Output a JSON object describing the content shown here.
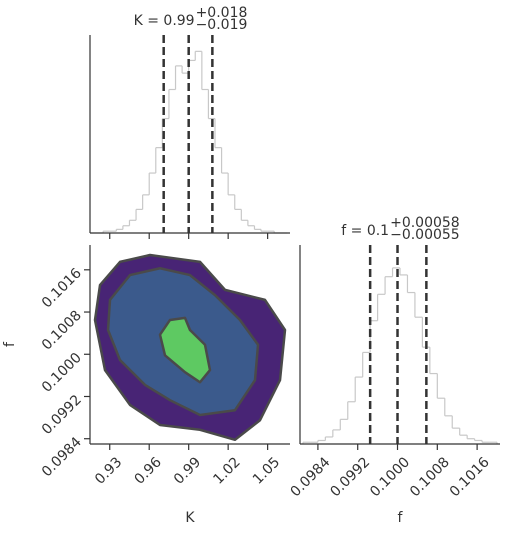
{
  "chart_data": [
    {
      "type": "histogram",
      "title": "K = 0.99",
      "title_upper": "+0.018",
      "title_lower": "−0.019",
      "bins": [
        0.915,
        0.92,
        0.925,
        0.93,
        0.935,
        0.94,
        0.945,
        0.95,
        0.955,
        0.96,
        0.965,
        0.97,
        0.975,
        0.98,
        0.985,
        0.99,
        0.995,
        1.0,
        1.005,
        1.01,
        1.015,
        1.02,
        1.025,
        1.03,
        1.035,
        1.04,
        1.045,
        1.05,
        1.055,
        1.06,
        1.065
      ],
      "values": [
        0,
        0,
        1,
        1,
        2,
        4,
        7,
        13,
        21,
        33,
        47,
        63,
        79,
        92,
        88,
        95,
        100,
        79,
        63,
        47,
        33,
        21,
        13,
        7,
        4,
        2,
        1,
        1,
        0,
        0
      ],
      "color": "#c8c8c8",
      "quantiles": [
        0.971,
        0.99,
        1.008
      ],
      "quantile_color": "#333333",
      "xlim": [
        0.915,
        1.067
      ],
      "ylim": [
        0,
        109
      ]
    },
    {
      "type": "contour",
      "xlabel": "K",
      "ylabel": "f",
      "xlim": [
        0.915,
        1.067
      ],
      "ylim": [
        0.0983,
        0.10207
      ],
      "xticks": [
        0.93,
        0.96,
        0.99,
        1.02,
        1.05
      ],
      "yticks": [
        0.0984,
        0.0992,
        {
          "value": 0.1,
          "label": "0.1000"
        },
        0.1008,
        0.1016
      ],
      "line_color": "#4a4a4a",
      "levels": [
        {
          "color": "#482475",
          "points": [
            [
              0.9226,
              0.10131
            ],
            [
              0.9378,
              0.10175
            ],
            [
              0.9606,
              0.10188
            ],
            [
              0.9986,
              0.10175
            ],
            [
              1.0176,
              0.10122
            ],
            [
              1.048,
              0.10103
            ],
            [
              1.0632,
              0.10046
            ],
            [
              1.0594,
              0.09951
            ],
            [
              1.0442,
              0.09875
            ],
            [
              1.0252,
              0.09838
            ],
            [
              0.9986,
              0.09857
            ],
            [
              0.9682,
              0.09866
            ],
            [
              0.9454,
              0.09904
            ],
            [
              0.9264,
              0.0997
            ],
            [
              0.9188,
              0.10065
            ]
          ]
        },
        {
          "color": "#3b5a8c",
          "points": [
            [
              0.9302,
              0.10103
            ],
            [
              0.9454,
              0.1015
            ],
            [
              0.9682,
              0.10163
            ],
            [
              0.991,
              0.1015
            ],
            [
              1.01,
              0.10112
            ],
            [
              1.029,
              0.10065
            ],
            [
              1.0427,
              0.10018
            ],
            [
              1.0404,
              0.09951
            ],
            [
              1.0252,
              0.09894
            ],
            [
              0.9986,
              0.09885
            ],
            [
              0.9758,
              0.09913
            ],
            [
              0.9568,
              0.09942
            ],
            [
              0.9378,
              0.09989
            ],
            [
              0.9287,
              0.10046
            ]
          ]
        },
        {
          "color": "#5ec962",
          "points": [
            [
              0.9758,
              0.10065
            ],
            [
              0.9872,
              0.10069
            ],
            [
              0.991,
              0.10046
            ],
            [
              1.0024,
              0.10018
            ],
            [
              1.0062,
              0.0997
            ],
            [
              0.9986,
              0.09947
            ],
            [
              0.9872,
              0.09966
            ],
            [
              0.972,
              0.09998
            ],
            [
              0.9682,
              0.10037
            ]
          ]
        }
      ]
    },
    {
      "type": "histogram",
      "title": "f = 0.1",
      "title_upper": "+0.00058",
      "title_lower": "−0.00055",
      "xlabel": "f",
      "bins": [
        0.0981,
        0.09825,
        0.0984,
        0.09855,
        0.0987,
        0.09885,
        0.099,
        0.09915,
        0.0993,
        0.09945,
        0.0996,
        0.09975,
        0.0999,
        0.10005,
        0.1002,
        0.10035,
        0.1005,
        0.10065,
        0.1008,
        0.10095,
        0.1011,
        0.10125,
        0.1014,
        0.10155,
        0.1017,
        0.10185,
        0.102
      ],
      "values": [
        1,
        1,
        2,
        4,
        8,
        14,
        24,
        38,
        52,
        70,
        85,
        95,
        100,
        96,
        86,
        72,
        55,
        40,
        26,
        16,
        9,
        5,
        3,
        2,
        1,
        1
      ],
      "color": "#c8c8c8",
      "quantiles": [
        0.09945,
        0.1,
        0.10058
      ],
      "quantile_color": "#333333",
      "xlim": [
        0.09804,
        0.10206
      ],
      "ylim": [
        0,
        113
      ],
      "xticks": [
        0.0984,
        0.0992,
        {
          "value": 0.1,
          "label": "0.1000"
        },
        0.1008,
        0.1016
      ]
    }
  ]
}
